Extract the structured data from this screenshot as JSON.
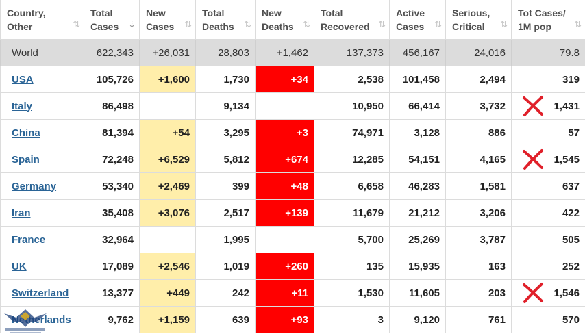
{
  "headers": [
    {
      "line1": "Country,",
      "line2": "Other",
      "sort": "⇅",
      "active": false
    },
    {
      "line1": "Total",
      "line2": "Cases",
      "sort": "⇣",
      "active": true
    },
    {
      "line1": "New",
      "line2": "Cases",
      "sort": "⇅",
      "active": false
    },
    {
      "line1": "Total",
      "line2": "Deaths",
      "sort": "⇅",
      "active": false
    },
    {
      "line1": "New",
      "line2": "Deaths",
      "sort": "⇅",
      "active": false
    },
    {
      "line1": "Total",
      "line2": "Recovered",
      "sort": "⇅",
      "active": false
    },
    {
      "line1": "Active",
      "line2": "Cases",
      "sort": "⇅",
      "active": false
    },
    {
      "line1": "Serious,",
      "line2": "Critical",
      "sort": "⇅",
      "active": false
    },
    {
      "line1": "Tot Cases/",
      "line2": "1M pop",
      "sort": "⇅",
      "active": false
    }
  ],
  "world": {
    "country": "World",
    "total_cases": "622,343",
    "new_cases": "+26,031",
    "total_deaths": "28,803",
    "new_deaths": "+1,462",
    "total_recovered": "137,373",
    "active_cases": "456,167",
    "serious": "24,016",
    "per_million": "79.8"
  },
  "rows": [
    {
      "country": "USA",
      "total_cases": "105,726",
      "new_cases": "+1,600",
      "total_deaths": "1,730",
      "new_deaths": "+34",
      "total_recovered": "2,538",
      "active_cases": "101,458",
      "serious": "2,494",
      "per_million": "319",
      "marked": false
    },
    {
      "country": "Italy",
      "total_cases": "86,498",
      "new_cases": "",
      "total_deaths": "9,134",
      "new_deaths": "",
      "total_recovered": "10,950",
      "active_cases": "66,414",
      "serious": "3,732",
      "per_million": "1,431",
      "marked": true
    },
    {
      "country": "China",
      "total_cases": "81,394",
      "new_cases": "+54",
      "total_deaths": "3,295",
      "new_deaths": "+3",
      "total_recovered": "74,971",
      "active_cases": "3,128",
      "serious": "886",
      "per_million": "57",
      "marked": false
    },
    {
      "country": "Spain",
      "total_cases": "72,248",
      "new_cases": "+6,529",
      "total_deaths": "5,812",
      "new_deaths": "+674",
      "total_recovered": "12,285",
      "active_cases": "54,151",
      "serious": "4,165",
      "per_million": "1,545",
      "marked": true
    },
    {
      "country": "Germany",
      "total_cases": "53,340",
      "new_cases": "+2,469",
      "total_deaths": "399",
      "new_deaths": "+48",
      "total_recovered": "6,658",
      "active_cases": "46,283",
      "serious": "1,581",
      "per_million": "637",
      "marked": false
    },
    {
      "country": "Iran",
      "total_cases": "35,408",
      "new_cases": "+3,076",
      "total_deaths": "2,517",
      "new_deaths": "+139",
      "total_recovered": "11,679",
      "active_cases": "21,212",
      "serious": "3,206",
      "per_million": "422",
      "marked": false
    },
    {
      "country": "France",
      "total_cases": "32,964",
      "new_cases": "",
      "total_deaths": "1,995",
      "new_deaths": "",
      "total_recovered": "5,700",
      "active_cases": "25,269",
      "serious": "3,787",
      "per_million": "505",
      "marked": false
    },
    {
      "country": "UK",
      "total_cases": "17,089",
      "new_cases": "+2,546",
      "total_deaths": "1,019",
      "new_deaths": "+260",
      "total_recovered": "135",
      "active_cases": "15,935",
      "serious": "163",
      "per_million": "252",
      "marked": false
    },
    {
      "country": "Switzerland",
      "total_cases": "13,377",
      "new_cases": "+449",
      "total_deaths": "242",
      "new_deaths": "+11",
      "total_recovered": "1,530",
      "active_cases": "11,605",
      "serious": "203",
      "per_million": "1,546",
      "marked": true
    },
    {
      "country": "Netherlands",
      "total_cases": "9,762",
      "new_cases": "+1,159",
      "total_deaths": "639",
      "new_deaths": "+93",
      "total_recovered": "3",
      "active_cases": "9,120",
      "serious": "761",
      "per_million": "570",
      "marked": false
    }
  ],
  "colors": {
    "new_cases_bg": "#ffeeaa",
    "new_deaths_bg": "#ff0000",
    "link": "#2a6496",
    "world_row_bg": "#dcdcdc",
    "mark": "#e0202a"
  },
  "icons": {
    "sort": "sort-arrows-icon",
    "mark": "red-x-mark-icon",
    "watermark": "eagle-watermark-logo"
  }
}
